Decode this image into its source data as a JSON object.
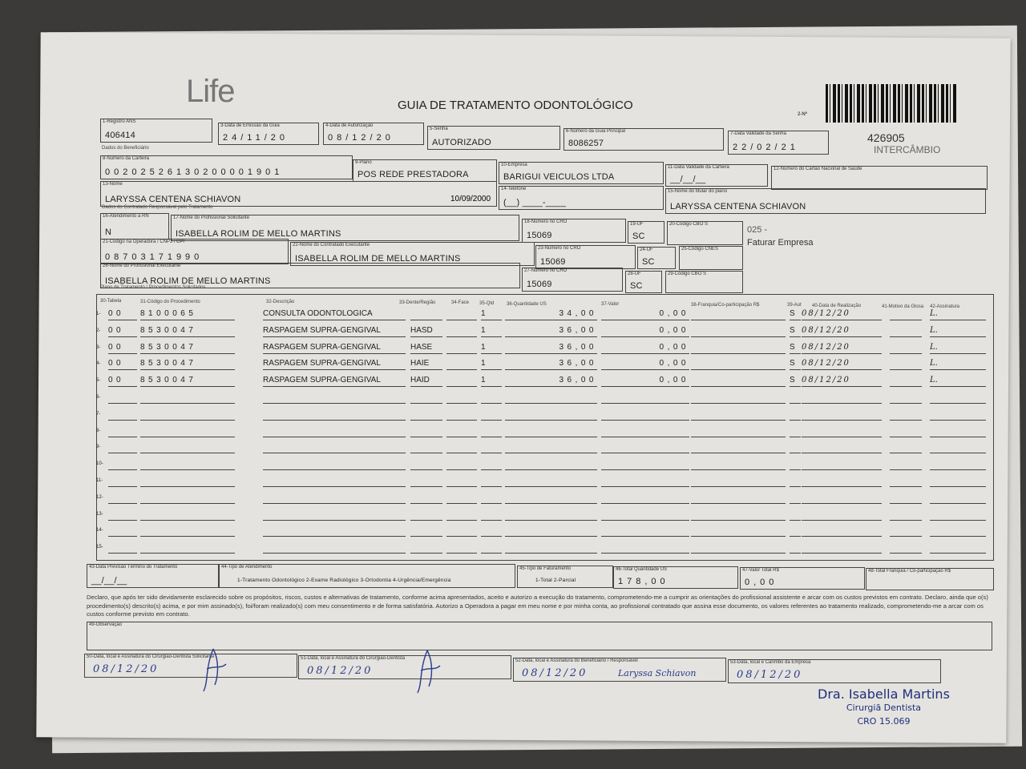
{
  "header": {
    "logo": "Life",
    "title": "GUIA DE TRATAMENTO ODONTOLÓGICO",
    "numero_label": "2-Nº",
    "numero": "426905",
    "tipo": "INTERCÂMBIO"
  },
  "fields": {
    "f1": {
      "label": "1-Registro ANS",
      "value": "406414"
    },
    "f3": {
      "label": "3-Data de Emissão da Guia",
      "value": "24/11/20"
    },
    "f4": {
      "label": "4-Data de Autorização",
      "value": "08/12/20"
    },
    "f5": {
      "label": "5-Senha",
      "value": "AUTORIZADO"
    },
    "f6": {
      "label": "6-Número da Guia Principal",
      "value": "8086257"
    },
    "f7": {
      "label": "7-Data Validade da Senha",
      "value": "22/02/21"
    },
    "sec_benef": "Dados do Beneficiário",
    "f8": {
      "label": "8-Número da Carteira",
      "value": "00202526130200001901"
    },
    "f9": {
      "label": "9-Plano",
      "value": "POS REDE PRESTADORA"
    },
    "f10": {
      "label": "10-Empresa",
      "value": "BARIGUI VEICULOS LTDA"
    },
    "f11": {
      "label": "11-Data Validade da Carteira",
      "value": "__/__/__"
    },
    "f12": {
      "label": "12-Número do Cartão Nacional de Saúde",
      "value": ""
    },
    "f13": {
      "label": "13-Nome",
      "value": "LARYSSA CENTENA SCHIAVON",
      "birth": "10/09/2000"
    },
    "f14": {
      "label": "14-Telefone",
      "value": "(__) ____-____"
    },
    "f15": {
      "label": "15-Nome do titular do plano",
      "value": "LARYSSA CENTENA SCHIAVON"
    },
    "sec_contr": "Dados do Contratado Responsável pelo Tratamento",
    "f16": {
      "label": "16-Atendimento a RN",
      "value": "N"
    },
    "f17": {
      "label": "17-Nome do Profissional Solicitante",
      "value": "ISABELLA ROLIM DE MELLO MARTINS"
    },
    "f18": {
      "label": "18-Número no CRO",
      "value": "15069"
    },
    "f19": {
      "label": "19-UF",
      "value": "SC"
    },
    "f20": {
      "label": "20-Código CBO S",
      "value": ""
    },
    "note1": "025 -",
    "note2": "Faturar Empresa",
    "f21": {
      "label": "21-Código na Operadora / CNPJ / CPF",
      "value": "08703171990"
    },
    "f22": {
      "label": "22-Nome do Contratado Executante",
      "value": "ISABELLA ROLIM DE MELLO MARTINS"
    },
    "f23": {
      "label": "23-Número no CRO",
      "value": "15069"
    },
    "f24": {
      "label": "24-UF",
      "value": "SC"
    },
    "f25": {
      "label": "25-Código CNES",
      "value": ""
    },
    "f26": {
      "label": "26-Nome do Profissional Executante",
      "value": "ISABELLA ROLIM DE MELLO MARTINS"
    },
    "f27": {
      "label": "27-Número no CRO",
      "value": "15069"
    },
    "f28": {
      "label": "28-UF",
      "value": "SC"
    },
    "f29": {
      "label": "29-Código CBO S",
      "value": ""
    },
    "sec_plano": "Plano de Tratamento / Procedimentos Solicitados"
  },
  "procedures": {
    "headers": [
      "30-Tabela",
      "31-Código do Procedimento",
      "32-Descrição",
      "33-Dente/Região",
      "34-Face",
      "35-Qtd",
      "36-Quantidade US",
      "37-Valor",
      "38-Franquia/Co-participação R$",
      "39-Aut",
      "40-Data de Realização",
      "41-Motivo da Glosa",
      "42-Assinatura"
    ],
    "rows": [
      {
        "n": "1-",
        "tabela": "00",
        "codigo": "8100065",
        "descricao": "CONSULTA ODONTOLOGICA",
        "dente": "",
        "face": "",
        "qtd": "1",
        "qtd_us": "34,00",
        "valor": "0,00",
        "franquia": "",
        "aut": "S",
        "data": "08/12/20",
        "glosa": "",
        "assinatura": "L."
      },
      {
        "n": "2-",
        "tabela": "00",
        "codigo": "8530047",
        "descricao": "RASPAGEM SUPRA-GENGIVAL",
        "dente": "HASD",
        "face": "",
        "qtd": "1",
        "qtd_us": "36,00",
        "valor": "0,00",
        "franquia": "",
        "aut": "S",
        "data": "08/12/20",
        "glosa": "",
        "assinatura": "L."
      },
      {
        "n": "3-",
        "tabela": "00",
        "codigo": "8530047",
        "descricao": "RASPAGEM SUPRA-GENGIVAL",
        "dente": "HASE",
        "face": "",
        "qtd": "1",
        "qtd_us": "36,00",
        "valor": "0,00",
        "franquia": "",
        "aut": "S",
        "data": "08/12/20",
        "glosa": "",
        "assinatura": "L."
      },
      {
        "n": "4-",
        "tabela": "00",
        "codigo": "8530047",
        "descricao": "RASPAGEM SUPRA-GENGIVAL",
        "dente": "HAIE",
        "face": "",
        "qtd": "1",
        "qtd_us": "36,00",
        "valor": "0,00",
        "franquia": "",
        "aut": "S",
        "data": "08/12/20",
        "glosa": "",
        "assinatura": "L."
      },
      {
        "n": "5-",
        "tabela": "00",
        "codigo": "8530047",
        "descricao": "RASPAGEM SUPRA-GENGIVAL",
        "dente": "HAID",
        "face": "",
        "qtd": "1",
        "qtd_us": "36,00",
        "valor": "0,00",
        "franquia": "",
        "aut": "S",
        "data": "08/12/20",
        "glosa": "",
        "assinatura": "L."
      },
      {
        "n": "6-"
      },
      {
        "n": "7-"
      },
      {
        "n": "8-"
      },
      {
        "n": "9-"
      },
      {
        "n": "10-"
      },
      {
        "n": "11-"
      },
      {
        "n": "12-"
      },
      {
        "n": "13-"
      },
      {
        "n": "14-"
      },
      {
        "n": "15-"
      }
    ]
  },
  "totals": {
    "f43": {
      "label": "43-Data Previsão Término do Tratamento",
      "value": "__/__/__"
    },
    "f44": {
      "label": "44-Tipo de Atendimento",
      "value": "1-Tratamento Odontológico 2-Exame Radiológico 3-Ortodontia 4-Urgência/Emergência"
    },
    "f45": {
      "label": "45-Tipo de Faturamento",
      "value": "1-Total 2-Parcial"
    },
    "f46": {
      "label": "46-Total Quantidade US",
      "value": "178,00"
    },
    "f47": {
      "label": "47-Valor Total R$",
      "value": "0,00"
    },
    "f48": {
      "label": "48-Total Franquia / Co-participação R$",
      "value": ""
    }
  },
  "declaration": "Declaro, que após ter sido devidamente esclarecido sobre os propósitos, riscos, custos e alternativas de tratamento, conforme acima apresentados, aceito e autorizo a execução do tratamento, comprometendo-me a cumprir as orientações do profissional assistente e arcar com os custos previstos em contrato. Declaro, ainda que o(s) procedimento(s) descrito(s) acima, e por mim assinado(s), foi/foram realizado(s) com meu consentimento e de forma satisfatória. Autorizo a Operadora a pagar em meu nome e por minha conta, ao profissional contratado que assina esse documento, os valores referentes ao tratamento realizado, comprometendo-me a arcar com os custos conforme previsto em contrato.",
  "observacao": {
    "label": "49-Observação",
    "value": ""
  },
  "signatures": {
    "f50": {
      "label": "50-Data, local e Assinatura do Cirurgião-Dentista Solicitante",
      "date": "08/12/20"
    },
    "f51": {
      "label": "51-Data, local e Assinatura do Cirurgião-Dentista",
      "date": "08/12/20"
    },
    "f52": {
      "label": "52-Data, local e Assinatura do Beneficiário / Responsável",
      "date": "08/12/20",
      "signature": "Laryssa Schiavon"
    },
    "f53": {
      "label": "53-Data, local e Carimbo da Empresa",
      "date": "08/12/20"
    }
  },
  "stamp": {
    "line1": "Dra. Isabella Martins",
    "line2": "Cirurgiã Dentista",
    "line3": "CRO 15.069"
  },
  "colors": {
    "ink": "#2a3b8a",
    "paper": "#e4e3df",
    "background": "#3b3a38"
  }
}
